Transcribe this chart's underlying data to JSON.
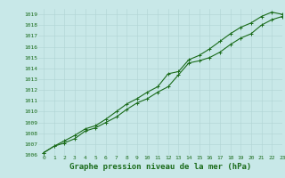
{
  "title": "Graphe pression niveau de la mer (hPa)",
  "background_color": "#c8e8e8",
  "grid_color": "#b0d4d4",
  "line_color": "#1a6b1a",
  "xlim": [
    -0.5,
    23
  ],
  "ylim": [
    1006,
    1019.5
  ],
  "xticks": [
    0,
    1,
    2,
    3,
    4,
    5,
    6,
    7,
    8,
    9,
    10,
    11,
    12,
    13,
    14,
    15,
    16,
    17,
    18,
    19,
    20,
    21,
    22,
    23
  ],
  "yticks": [
    1006,
    1007,
    1008,
    1009,
    1010,
    1011,
    1012,
    1013,
    1014,
    1015,
    1016,
    1017,
    1018,
    1019
  ],
  "series1_x": [
    0,
    1,
    2,
    3,
    4,
    5,
    6,
    7,
    8,
    9,
    10,
    11,
    12,
    13,
    14,
    15,
    16,
    17,
    18,
    19,
    20,
    21,
    22,
    23
  ],
  "series1_y": [
    1006.2,
    1006.8,
    1007.1,
    1007.5,
    1008.2,
    1008.5,
    1009.0,
    1009.5,
    1010.2,
    1010.8,
    1011.2,
    1011.8,
    1012.3,
    1013.4,
    1014.5,
    1014.7,
    1015.0,
    1015.5,
    1016.2,
    1016.8,
    1017.2,
    1018.0,
    1018.5,
    1018.8
  ],
  "series2_x": [
    0,
    1,
    2,
    3,
    4,
    5,
    6,
    7,
    8,
    9,
    10,
    11,
    12,
    13,
    14,
    15,
    16,
    17,
    18,
    19,
    20,
    21,
    22,
    23
  ],
  "series2_y": [
    1006.2,
    1006.8,
    1007.3,
    1007.8,
    1008.4,
    1008.7,
    1009.3,
    1010.0,
    1010.7,
    1011.2,
    1011.8,
    1012.3,
    1013.5,
    1013.7,
    1014.8,
    1015.2,
    1015.8,
    1016.5,
    1017.2,
    1017.8,
    1018.2,
    1018.8,
    1019.2,
    1019.0
  ],
  "font_color": "#1a6b1a",
  "tick_fontsize": 4.5,
  "title_fontsize": 6.5,
  "marker_size": 2.5,
  "line_width": 0.8
}
